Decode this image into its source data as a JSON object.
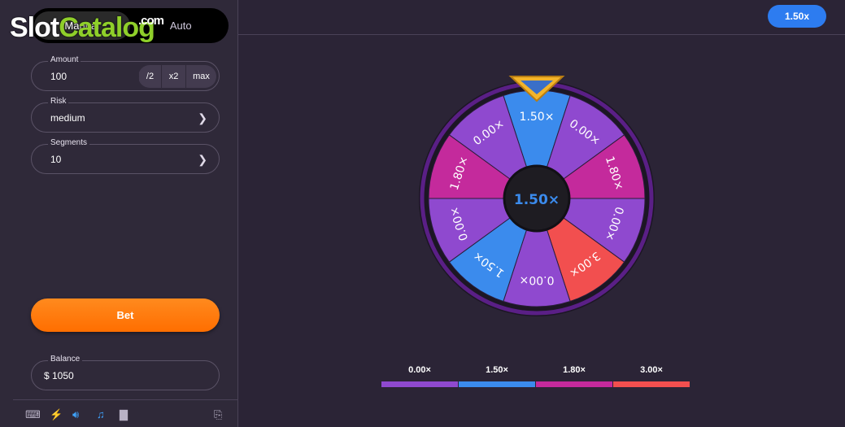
{
  "watermark": {
    "slot": "Slot",
    "catalog": "Catalog",
    "com": ".com"
  },
  "mode": {
    "manual": "Manual",
    "auto": "Auto"
  },
  "amount": {
    "label": "Amount",
    "value": "100",
    "half": "/2",
    "double": "x2",
    "max": "max"
  },
  "risk": {
    "label": "Risk",
    "value": "medium"
  },
  "segments": {
    "label": "Segments",
    "value": "10"
  },
  "bet_label": "Bet",
  "balance": {
    "label": "Balance",
    "value": "$ 1050"
  },
  "history_badge": "1.50x",
  "wheel": {
    "center_result": "1.50×",
    "segments": [
      "1.50×",
      "0.00×",
      "1.80×",
      "0.00×",
      "3.00×",
      "0.00×",
      "1.50×",
      "0.00×",
      "1.80×",
      "0.00×"
    ],
    "colors": {
      "0.00×": "#8f49cf",
      "1.50×": "#3b8bed",
      "1.80×": "#c42a9c",
      "3.00×": "#f24f4f"
    }
  },
  "legend": [
    {
      "label": "0.00×",
      "color": "#8f49cf"
    },
    {
      "label": "1.50×",
      "color": "#3b8bed"
    },
    {
      "label": "1.80×",
      "color": "#c42a9c"
    },
    {
      "label": "3.00×",
      "color": "#f24f4f"
    }
  ],
  "icons": [
    "keyboard-icon",
    "lightning-icon",
    "speaker-icon",
    "music-icon",
    "stats-icon",
    "exit-icon"
  ]
}
